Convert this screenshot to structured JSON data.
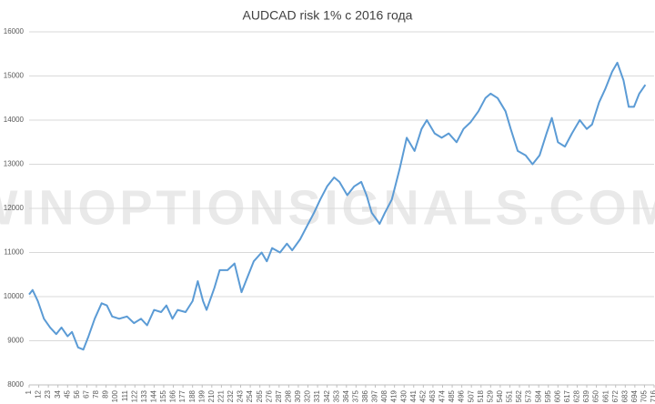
{
  "chart_data": {
    "type": "line",
    "title": "AUDCAD risk 1% с 2016 года",
    "watermark": "WINOPTIONSIGNALS.COM",
    "x": [
      1,
      5,
      11,
      18,
      25,
      32,
      38,
      45,
      50,
      57,
      63,
      69,
      76,
      84,
      90,
      96,
      104,
      113,
      121,
      129,
      136,
      144,
      152,
      158,
      165,
      171,
      180,
      188,
      194,
      200,
      204,
      213,
      219,
      228,
      236,
      244,
      250,
      258,
      267,
      273,
      279,
      288,
      296,
      302,
      311,
      319,
      327,
      334,
      342,
      350,
      356,
      365,
      373,
      381,
      387,
      393,
      402,
      408,
      416,
      425,
      433,
      442,
      450,
      456,
      465,
      473,
      481,
      490,
      498,
      506,
      515,
      523,
      529,
      537,
      546,
      552,
      560,
      569,
      577,
      585,
      593,
      599,
      606,
      614,
      622,
      631,
      639,
      645,
      653,
      660,
      668,
      674,
      681,
      687,
      693,
      699,
      706
    ],
    "series": [
      {
        "name": "AUDCAD",
        "color": "#5b9bd5",
        "values": [
          10050,
          10150,
          9900,
          9500,
          9300,
          9150,
          9300,
          9100,
          9200,
          8850,
          8800,
          9100,
          9500,
          9850,
          9800,
          9550,
          9500,
          9550,
          9400,
          9500,
          9350,
          9700,
          9650,
          9800,
          9500,
          9700,
          9650,
          9900,
          10350,
          9900,
          9700,
          10200,
          10600,
          10600,
          10750,
          10100,
          10400,
          10800,
          11000,
          10800,
          11100,
          11000,
          11200,
          11050,
          11300,
          11600,
          11900,
          12200,
          12500,
          12700,
          12600,
          12300,
          12500,
          12600,
          12300,
          11900,
          11650,
          11900,
          12200,
          12900,
          13600,
          13300,
          13800,
          14000,
          13700,
          13600,
          13700,
          13500,
          13800,
          13950,
          14200,
          14500,
          14600,
          14500,
          14200,
          13800,
          13300,
          13200,
          13000,
          13200,
          13700,
          14050,
          13500,
          13400,
          13700,
          14000,
          13800,
          13900,
          14400,
          14700,
          15100,
          15300,
          14900,
          14300,
          14300,
          14600,
          14800
        ]
      }
    ],
    "xlim": [
      1,
      716
    ],
    "xticks": [
      1,
      12,
      23,
      34,
      45,
      56,
      67,
      78,
      89,
      100,
      111,
      122,
      133,
      144,
      155,
      166,
      177,
      188,
      199,
      210,
      221,
      232,
      243,
      254,
      265,
      276,
      287,
      298,
      309,
      320,
      331,
      342,
      353,
      364,
      375,
      386,
      397,
      408,
      419,
      430,
      441,
      452,
      463,
      474,
      485,
      496,
      507,
      518,
      529,
      540,
      551,
      562,
      573,
      584,
      595,
      606,
      617,
      628,
      639,
      650,
      661,
      672,
      683,
      694,
      705,
      716
    ],
    "ylim": [
      8000,
      16000
    ],
    "yticks": [
      8000,
      9000,
      10000,
      11000,
      12000,
      13000,
      14000,
      15000,
      16000
    ],
    "grid": true
  }
}
